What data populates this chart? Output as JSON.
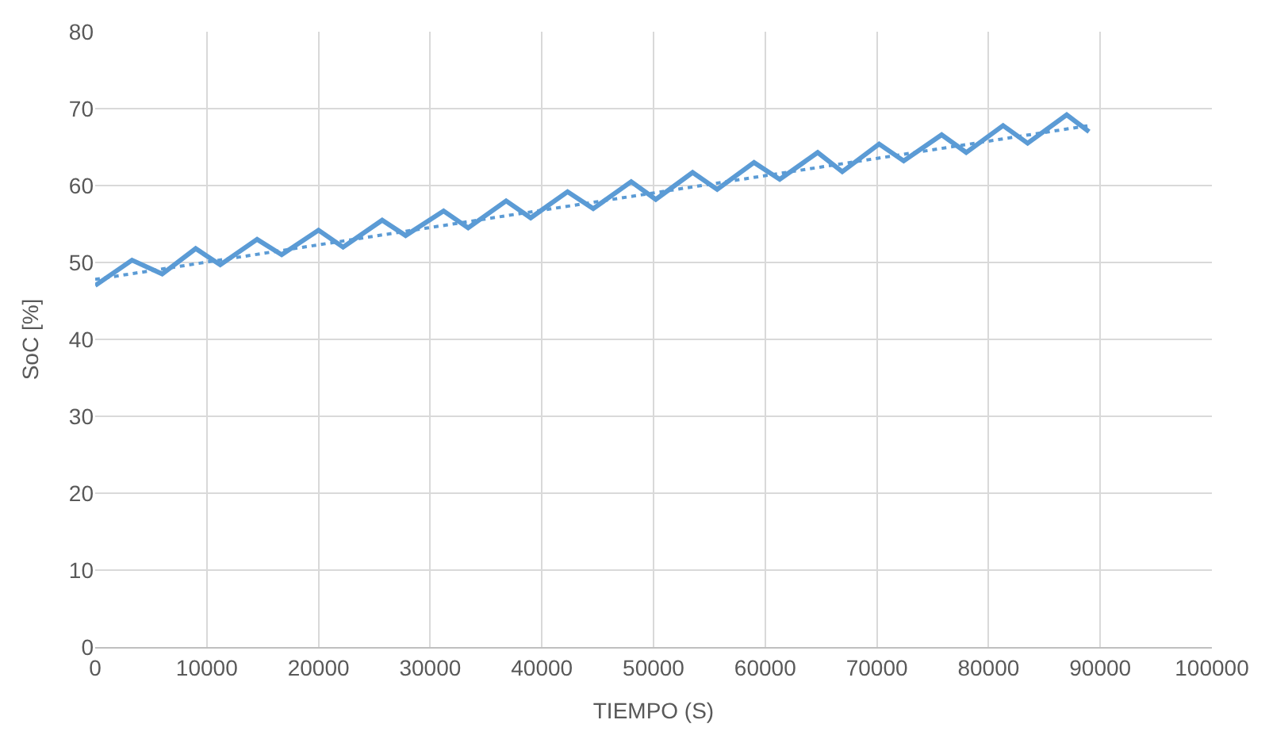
{
  "chart_data": {
    "type": "line",
    "xlabel": "TIEMPO (S)",
    "ylabel": "SoC [%]",
    "xlim": [
      0,
      100000
    ],
    "xticks": [
      0,
      10000,
      20000,
      30000,
      40000,
      50000,
      60000,
      70000,
      80000,
      90000,
      100000
    ],
    "ylim": [
      0,
      80
    ],
    "yticks": [
      0,
      10,
      20,
      30,
      40,
      50,
      60,
      70,
      80
    ],
    "grid": true,
    "marker": "none",
    "series": [
      {
        "color": "#5b9bd5",
        "line_style": "solid",
        "x": [
          0,
          3300,
          6000,
          9000,
          11200,
          14500,
          16700,
          20000,
          22200,
          25700,
          27800,
          31200,
          33400,
          36800,
          39000,
          42300,
          44600,
          48000,
          50200,
          53500,
          55700,
          59000,
          61300,
          64700,
          66900,
          70200,
          72400,
          75800,
          78000,
          81300,
          83500,
          87000,
          89000
        ],
        "values": [
          47,
          50.3,
          48.5,
          51.8,
          49.7,
          53,
          51,
          54.2,
          52,
          55.5,
          53.5,
          56.7,
          54.5,
          58,
          55.8,
          59.2,
          57,
          60.5,
          58.2,
          61.7,
          59.5,
          63,
          60.8,
          64.3,
          61.8,
          65.4,
          63.2,
          66.6,
          64.3,
          67.8,
          65.5,
          69.2,
          67
        ]
      },
      {
        "color": "#5b9bd5",
        "line_style": "dotted",
        "x": [
          0,
          89000
        ],
        "values": [
          47.8,
          67.8
        ]
      }
    ]
  }
}
